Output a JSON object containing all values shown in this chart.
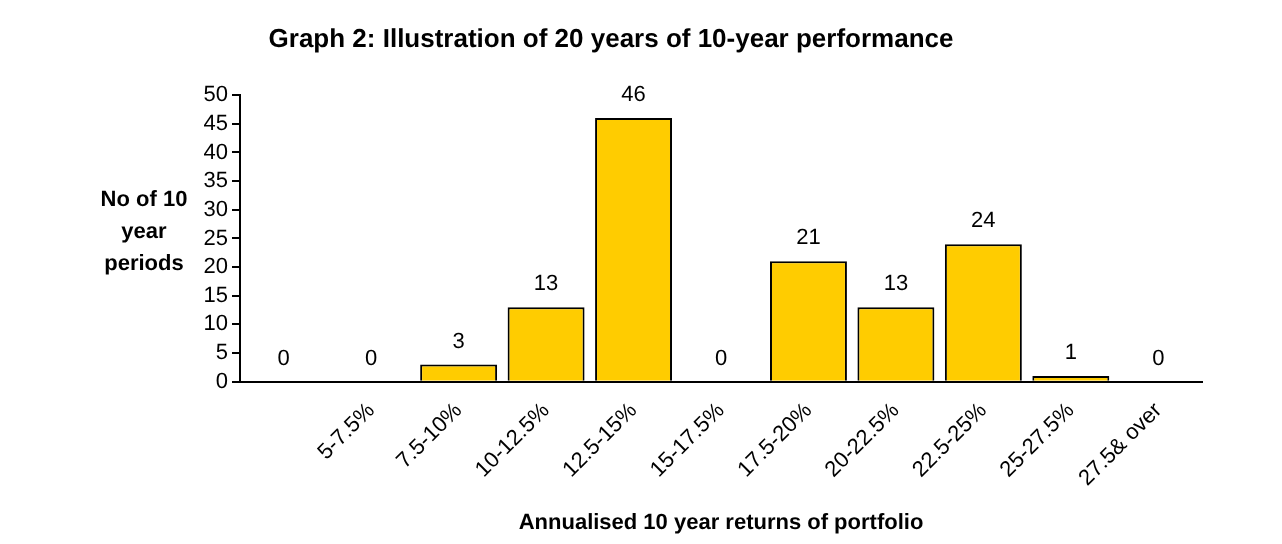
{
  "chart_data": {
    "type": "bar",
    "title": "Graph 2: Illustration of 20 years of 10-year performance",
    "xlabel": "Annualised 10 year returns of portfolio",
    "ylabel": "No of 10 year periods",
    "categories": [
      null,
      "5-7.5%",
      "7.5-10%",
      "10-12.5%",
      "12.5-15%",
      "15-17.5%",
      "17.5-20%",
      "20-22.5%",
      "22.5-25%",
      "25-27.5%",
      "27.5& over"
    ],
    "values": [
      0,
      0,
      3,
      13,
      46,
      0,
      21,
      13,
      24,
      1,
      0
    ],
    "color": "#ffcc00",
    "ylim": [
      0,
      50
    ],
    "yticks": [
      0,
      5,
      10,
      15,
      20,
      25,
      30,
      35,
      40,
      45,
      50
    ],
    "grid": false,
    "data_labels": true
  }
}
